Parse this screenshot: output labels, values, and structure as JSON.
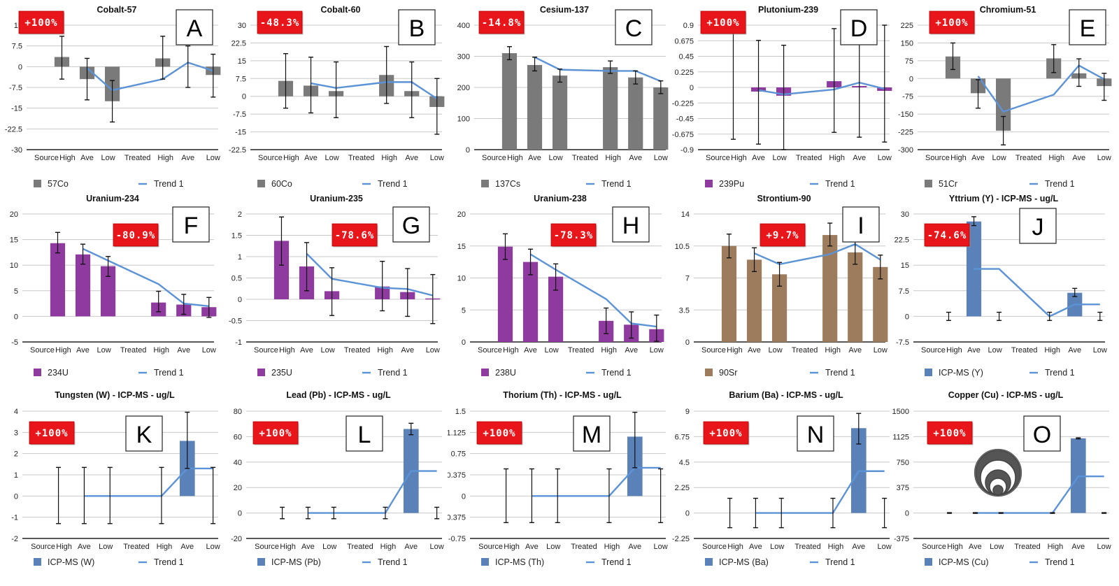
{
  "chart_data": [
    {
      "id": "A",
      "type": "bar",
      "title": "Cobalt-57",
      "badge": "+100%",
      "legend": {
        "series": "57Co",
        "trend": "Trend 1"
      },
      "bar_color": "#7a7a7a",
      "categories": [
        "Source High",
        "Ave",
        "Low",
        "Treated High",
        "Ave",
        "Low"
      ],
      "yticks": [
        "15",
        "7.5",
        "0",
        "-7.5",
        "-15",
        "-22.5",
        "-30"
      ],
      "ylim": [
        -30,
        15
      ],
      "values": [
        3.5,
        -4.5,
        -12.5,
        3,
        0,
        -3
      ],
      "err_low": [
        -4.5,
        -12,
        -20,
        -4.5,
        -7.5,
        -11
      ],
      "err_high": [
        11,
        3,
        -5,
        11,
        7.5,
        4.5
      ],
      "trend": [
        null,
        -0.5,
        -8.5,
        -4.5,
        1.5,
        -1.5
      ]
    },
    {
      "id": "B",
      "type": "bar",
      "title": "Cobalt-60",
      "badge": "-48.3%",
      "legend": {
        "series": "60Co",
        "trend": "Trend 1"
      },
      "bar_color": "#7a7a7a",
      "categories": [
        "Source High",
        "Ave",
        "Low",
        "Treated High",
        "Ave",
        "Low"
      ],
      "yticks": [
        "30",
        "22.5",
        "15",
        "7.5",
        "0",
        "-7.5",
        "-15",
        "-22.5"
      ],
      "ylim": [
        -22.5,
        30
      ],
      "values": [
        6.5,
        4.5,
        2.2,
        9,
        2.2,
        -4.5
      ],
      "err_low": [
        -5,
        -7,
        -9,
        -3,
        -9,
        -16
      ],
      "err_high": [
        18,
        16.5,
        14.5,
        21,
        14.5,
        7.5
      ],
      "trend": [
        null,
        5.5,
        3.5,
        6,
        6,
        -1
      ]
    },
    {
      "id": "C",
      "type": "bar",
      "title": "Cesium-137",
      "badge": "-14.8%",
      "legend": {
        "series": "137Cs",
        "trend": "Trend 1"
      },
      "bar_color": "#7a7a7a",
      "categories": [
        "Source High",
        "Ave",
        "Low",
        "Treated High",
        "Ave",
        "Low"
      ],
      "yticks": [
        "400",
        "300",
        "200",
        "100",
        "0"
      ],
      "ylim": [
        0,
        400
      ],
      "values": [
        310,
        272,
        238,
        265,
        232,
        200
      ],
      "err_low": [
        289,
        253,
        217,
        245,
        211,
        180
      ],
      "err_high": [
        331,
        297,
        259,
        285,
        253,
        221
      ],
      "trend": [
        null,
        297,
        257,
        253,
        253,
        220
      ]
    },
    {
      "id": "D",
      "type": "bar",
      "title": "Plutonium-239",
      "badge": "+100%",
      "legend": {
        "series": "239Pu",
        "trend": "Trend 1"
      },
      "bar_color": "#8e3a9e",
      "categories": [
        "Source High",
        "Ave",
        "Low",
        "Treated High",
        "Ave",
        "Low"
      ],
      "yticks": [
        "0.9",
        "0.675",
        "0.45",
        "0.225",
        "0",
        "-0.225",
        "-0.45",
        "-0.675",
        "-0.9"
      ],
      "ylim": [
        -0.9,
        0.9
      ],
      "values": [
        0,
        -0.06,
        -0.12,
        0.09,
        0.02,
        -0.05
      ],
      "err_low": [
        -0.75,
        -0.82,
        -0.9,
        -0.65,
        -0.72,
        -0.79
      ],
      "err_high": [
        0.9,
        0.68,
        0.61,
        0.85,
        0.9,
        0.9
      ],
      "trend": [
        null,
        -0.04,
        -0.1,
        -0.03,
        0.07,
        -0.02
      ]
    },
    {
      "id": "E",
      "type": "bar",
      "title": "Chromium-51",
      "badge": "+100%",
      "legend": {
        "series": "51Cr",
        "trend": "Trend 1"
      },
      "bar_color": "#7a7a7a",
      "categories": [
        "Source High",
        "Ave",
        "Low",
        "Treated High",
        "Ave",
        "Low"
      ],
      "yticks": [
        "225",
        "150",
        "75",
        "0",
        "-75",
        "-150",
        "-225",
        "-300"
      ],
      "ylim": [
        -300,
        225
      ],
      "values": [
        93,
        -62,
        -220,
        85,
        22,
        -32
      ],
      "err_low": [
        38,
        -125,
        -280,
        25,
        -33,
        -92
      ],
      "err_high": [
        150,
        -5,
        -160,
        143,
        83,
        22
      ],
      "trend": [
        null,
        10,
        -140,
        -68,
        55,
        -3
      ]
    },
    {
      "id": "F",
      "type": "bar",
      "title": "Uranium-234",
      "badge": "-80.9%",
      "legend": {
        "series": "234U",
        "trend": "Trend 1"
      },
      "bar_color": "#8e3a9e",
      "categories": [
        "Source High",
        "Ave",
        "Low",
        "Treated High",
        "Ave",
        "Low"
      ],
      "yticks": [
        "20",
        "15",
        "10",
        "5",
        "0",
        "-5"
      ],
      "ylim": [
        -5,
        20
      ],
      "values": [
        14.3,
        12.1,
        9.8,
        2.7,
        2.3,
        1.8
      ],
      "err_low": [
        12.4,
        10.2,
        7.8,
        0.9,
        0.4,
        -0.2
      ],
      "err_high": [
        16.4,
        14.1,
        11.7,
        4.9,
        4.3,
        3.7
      ],
      "trend": [
        null,
        13.2,
        10.9,
        6.3,
        2.5,
        2.0
      ]
    },
    {
      "id": "G",
      "type": "bar",
      "title": "Uranium-235",
      "badge": "-78.6%",
      "legend": {
        "series": "235U",
        "trend": "Trend 1"
      },
      "bar_color": "#8e3a9e",
      "categories": [
        "Source High",
        "Ave",
        "Low",
        "Treated High",
        "Ave",
        "Low"
      ],
      "yticks": [
        "2",
        "1.5",
        "1",
        "0.5",
        "0",
        "-0.5",
        "-1"
      ],
      "ylim": [
        -1,
        2
      ],
      "values": [
        1.37,
        0.77,
        0.19,
        0.3,
        0.17,
        0.02
      ],
      "err_low": [
        0.8,
        0.2,
        -0.38,
        -0.27,
        -0.4,
        -0.57
      ],
      "err_high": [
        1.93,
        1.33,
        0.74,
        0.89,
        0.72,
        0.58
      ],
      "trend": [
        null,
        1.07,
        0.48,
        0.27,
        0.24,
        0.09
      ]
    },
    {
      "id": "H",
      "type": "bar",
      "title": "Uranium-238",
      "badge": "-78.3%",
      "legend": {
        "series": "238U",
        "trend": "Trend 1"
      },
      "bar_color": "#8e3a9e",
      "categories": [
        "Source High",
        "Ave",
        "Low",
        "Treated High",
        "Ave",
        "Low"
      ],
      "yticks": [
        "20",
        "15",
        "10",
        "5",
        "0"
      ],
      "ylim": [
        0,
        20
      ],
      "values": [
        14.9,
        12.5,
        10.2,
        3.3,
        2.7,
        2.0
      ],
      "err_low": [
        12.9,
        10.5,
        8.1,
        1.3,
        0.6,
        0.1
      ],
      "err_high": [
        16.9,
        14.5,
        12.2,
        5.3,
        4.7,
        4.2
      ],
      "trend": [
        null,
        13.7,
        11.3,
        6.7,
        2.9,
        2.4
      ]
    },
    {
      "id": "I",
      "type": "bar",
      "title": "Strontium-90",
      "badge": "+9.7%",
      "legend": {
        "series": "90Sr",
        "trend": "Trend 1"
      },
      "bar_color": "#9c7c5c",
      "categories": [
        "Source High",
        "Ave",
        "Low",
        "Treated High",
        "Ave",
        "Low"
      ],
      "yticks": [
        "14",
        "10.5",
        "7",
        "3.5",
        "0"
      ],
      "ylim": [
        0,
        14
      ],
      "values": [
        10.5,
        9.0,
        7.4,
        11.7,
        9.8,
        8.2
      ],
      "err_low": [
        9.2,
        7.7,
        6.1,
        10.5,
        8.5,
        6.9
      ],
      "err_high": [
        11.8,
        10.3,
        8.7,
        13.0,
        11.1,
        9.5
      ],
      "trend": [
        null,
        9.7,
        8.5,
        9.6,
        10.7,
        9.0
      ]
    },
    {
      "id": "J",
      "type": "bar",
      "title": "Yttrium (Y) - ICP-MS - ug/L",
      "badge": "-74.6%",
      "legend": {
        "series": "ICP-MS (Y)",
        "trend": "Trend 1"
      },
      "bar_color": "#5b82b8",
      "categories": [
        "Source High",
        "Ave",
        "Low",
        "Treated High",
        "Ave",
        "Low"
      ],
      "yticks": [
        "30",
        "22.5",
        "15",
        "7.5",
        "0",
        "-7.5"
      ],
      "ylim": [
        -7.5,
        30
      ],
      "values": [
        0,
        27.8,
        0,
        0,
        6.9,
        0
      ],
      "err_low": [
        -1.2,
        26.6,
        -1.2,
        -1.2,
        5.8,
        -1.2
      ],
      "err_high": [
        1.2,
        29.2,
        1.2,
        1.2,
        8.2,
        1.2
      ],
      "trend": [
        null,
        13.9,
        13.9,
        0,
        3.5,
        3.5
      ]
    },
    {
      "id": "K",
      "type": "bar",
      "title": "Tungsten (W) - ICP-MS - ug/L",
      "badge": "+100%",
      "legend": {
        "series": "ICP-MS (W)",
        "trend": "Trend 1"
      },
      "bar_color": "#5b82b8",
      "categories": [
        "Source High",
        "Ave",
        "Low",
        "Treated High",
        "Ave",
        "Low"
      ],
      "yticks": [
        "4",
        "3",
        "2",
        "1",
        "0",
        "-1",
        "-2"
      ],
      "ylim": [
        -2,
        4
      ],
      "values": [
        0,
        0,
        0,
        0,
        2.6,
        0
      ],
      "err_low": [
        -1.3,
        -1.3,
        -1.3,
        -1.3,
        1.3,
        -1.3
      ],
      "err_high": [
        1.35,
        1.35,
        1.35,
        1.35,
        3.95,
        1.35
      ],
      "trend": [
        null,
        0,
        0,
        0,
        1.3,
        1.3
      ]
    },
    {
      "id": "L",
      "type": "bar",
      "title": "Lead (Pb) - ICP-MS  - ug/L",
      "badge": "+100%",
      "legend": {
        "series": "ICP-MS (Pb)",
        "trend": "Trend 1"
      },
      "bar_color": "#5b82b8",
      "categories": [
        "Source High",
        "Ave",
        "Low",
        "Treated High",
        "Ave",
        "Low"
      ],
      "yticks": [
        "80",
        "60",
        "40",
        "20",
        "0",
        "-20"
      ],
      "ylim": [
        -20,
        80
      ],
      "values": [
        0,
        0,
        0,
        0,
        66,
        0
      ],
      "err_low": [
        -4.5,
        -4.5,
        -4.5,
        -4.5,
        61.5,
        -4.5
      ],
      "err_high": [
        4.5,
        4.5,
        4.5,
        4.5,
        70.5,
        4.5
      ],
      "trend": [
        null,
        0,
        0,
        0,
        33,
        33
      ],
      "right_ticks": [
        "1.125",
        "0.75",
        "0.375",
        "-0.375",
        "-0.75"
      ]
    },
    {
      "id": "M",
      "type": "bar",
      "title": "Thorium (Th) - ICP-MS - ug/L",
      "badge": "+100%",
      "legend": {
        "series": "ICP-MS (Th)",
        "trend": "Trend 1"
      },
      "bar_color": "#5b82b8",
      "categories": [
        "Source High",
        "Ave",
        "Low",
        "Treated High",
        "Ave",
        "Low"
      ],
      "yticks": [
        "1.5",
        "1.125",
        "0.75",
        "0.375",
        "0",
        "-0.375",
        "-0.75"
      ],
      "ylim": [
        -0.75,
        1.5
      ],
      "values": [
        0,
        0,
        0,
        0,
        1.05,
        0
      ],
      "err_low": [
        -0.47,
        -0.47,
        -0.47,
        -0.47,
        0.5,
        -0.47
      ],
      "err_high": [
        0.48,
        0.48,
        0.48,
        0.48,
        1.48,
        0.48
      ],
      "trend": [
        null,
        0,
        0,
        0,
        0.5,
        0.5
      ],
      "right_ticks": [
        "9",
        "6.75",
        "4.5",
        "2.25",
        "0",
        "-2.25"
      ]
    },
    {
      "id": "N",
      "type": "bar",
      "title": "Barium (Ba) - ICP-MS - ug/L",
      "badge": "+100%",
      "legend": {
        "series": "ICP-MS (Ba)",
        "trend": "Trend 1"
      },
      "bar_color": "#5b82b8",
      "categories": [
        "Source High",
        "Ave",
        "Low",
        "Treated High",
        "Ave",
        "Low"
      ],
      "yticks": [
        "9",
        "6.75",
        "4.5",
        "2.25",
        "0",
        "-2.25"
      ],
      "ylim": [
        -2.25,
        9
      ],
      "values": [
        0,
        0,
        0,
        0,
        7.5,
        0
      ],
      "err_low": [
        -1.3,
        -1.3,
        -1.3,
        -1.3,
        6.1,
        -1.3
      ],
      "err_high": [
        1.3,
        1.3,
        1.3,
        1.3,
        8.8,
        1.3
      ],
      "trend": [
        null,
        0,
        0,
        0,
        3.7,
        3.7
      ],
      "right_ticks": [
        "1500",
        "1125",
        "750",
        "375",
        "0",
        "-375"
      ]
    },
    {
      "id": "O",
      "type": "bar",
      "title": "Copper (Cu) - ICP-MS - ug/L",
      "badge": "+100%",
      "legend": {
        "series": "ICP-MS (Cu)",
        "trend": "Trend 1"
      },
      "bar_color": "#5b82b8",
      "categories": [
        "Source High",
        "Ave",
        "Low",
        "Treated High",
        "Ave",
        "Low"
      ],
      "yticks": [
        "1500",
        "1125",
        "750",
        "375",
        "0",
        "-375"
      ],
      "ylim": [
        -375,
        1500
      ],
      "values": [
        0,
        0,
        0,
        0,
        1100,
        0
      ],
      "err_low": [
        -5,
        -5,
        -5,
        -5,
        1092,
        -5
      ],
      "err_high": [
        5,
        5,
        5,
        5,
        1108,
        5
      ],
      "trend": [
        null,
        0,
        0,
        0,
        540,
        540
      ],
      "has_circle_icon": true
    }
  ],
  "colors": {
    "badge": "#e8161a",
    "trend": "#5b93d6",
    "grid": "#c8c8c8",
    "axis": "#222222",
    "errorbar": "#111111"
  }
}
